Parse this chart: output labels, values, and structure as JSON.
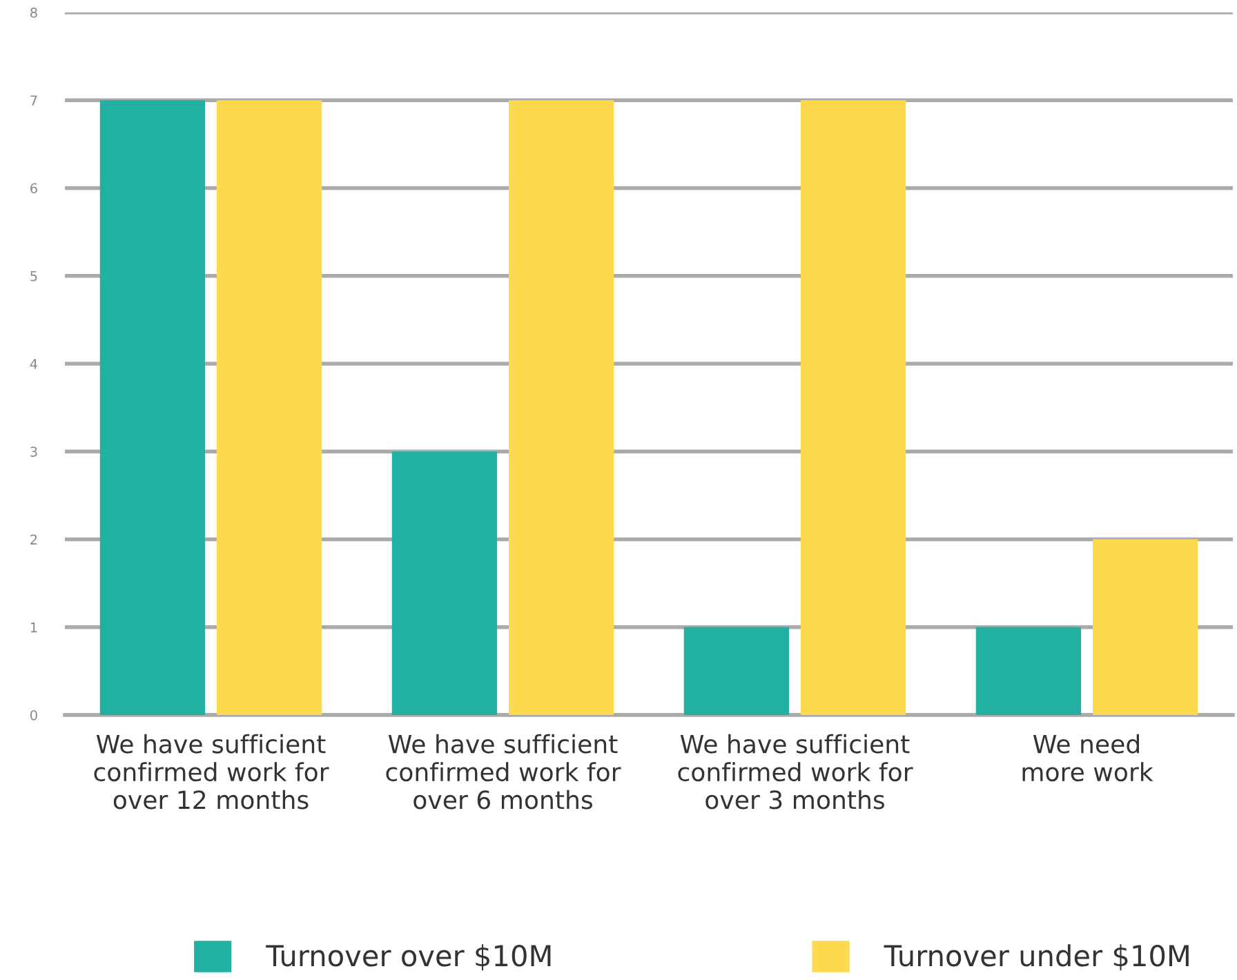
{
  "chart_data": {
    "type": "bar",
    "categories": [
      "We have sufficient\nconfirmed work for\nover 12 months",
      "We have sufficient\nconfirmed work for\nover 6 months",
      "We have sufficient\nconfirmed work for\nover 3 months",
      "We need\nmore work"
    ],
    "series": [
      {
        "name": "Turnover over $10M",
        "color": "#22b0a2",
        "values": [
          7,
          3,
          1,
          1
        ]
      },
      {
        "name": "Turnover under $10M",
        "color": "#fdd94f",
        "values": [
          7,
          7,
          7,
          2
        ]
      }
    ],
    "ylim": [
      0,
      8
    ],
    "yticks": [
      0,
      1,
      2,
      3,
      4,
      5,
      6,
      7,
      8
    ],
    "grid": "y",
    "legend": "bottom"
  }
}
